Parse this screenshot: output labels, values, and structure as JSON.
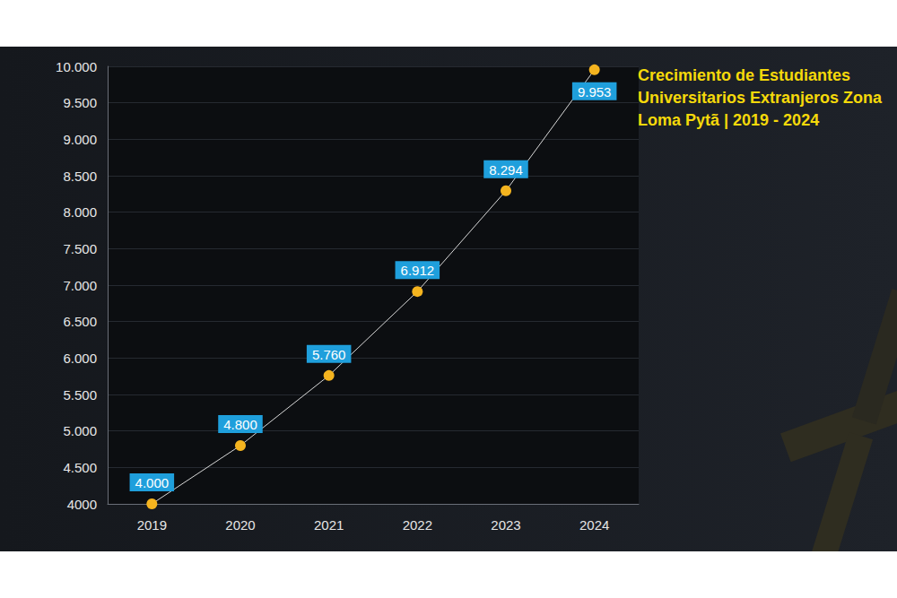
{
  "chart_data": {
    "type": "line",
    "title": "Crecimiento de Estudiantes Universitarios Extranjeros Zona Loma Pytã | 2019 - 2024",
    "categories": [
      "2019",
      "2020",
      "2021",
      "2022",
      "2023",
      "2024"
    ],
    "values": [
      4000,
      4800,
      5760,
      6912,
      8294,
      9953
    ],
    "value_labels": [
      "4.000",
      "4.800",
      "5.760",
      "6.912",
      "8.294",
      "9.953"
    ],
    "color": "#f5b41f",
    "ylim": [
      4000,
      10000
    ],
    "yticks": [
      4000,
      {
        "value": 4500,
        "label": "4.500"
      },
      {
        "value": 5000,
        "label": "5.000"
      },
      {
        "value": 5500,
        "label": "5.500"
      },
      {
        "value": 6000,
        "label": "6.000"
      },
      {
        "value": 6500,
        "label": "6.500"
      },
      {
        "value": 7000,
        "label": "7.000"
      },
      {
        "value": 7500,
        "label": "7.500"
      },
      {
        "value": 8000,
        "label": "8.000"
      },
      {
        "value": 8500,
        "label": "8.500"
      },
      {
        "value": 9000,
        "label": "9.000"
      },
      {
        "value": 9500,
        "label": "9.500"
      },
      {
        "value": 10000,
        "label": "10.000"
      }
    ],
    "grid": true,
    "data_labels": true,
    "marker": "circle"
  }
}
